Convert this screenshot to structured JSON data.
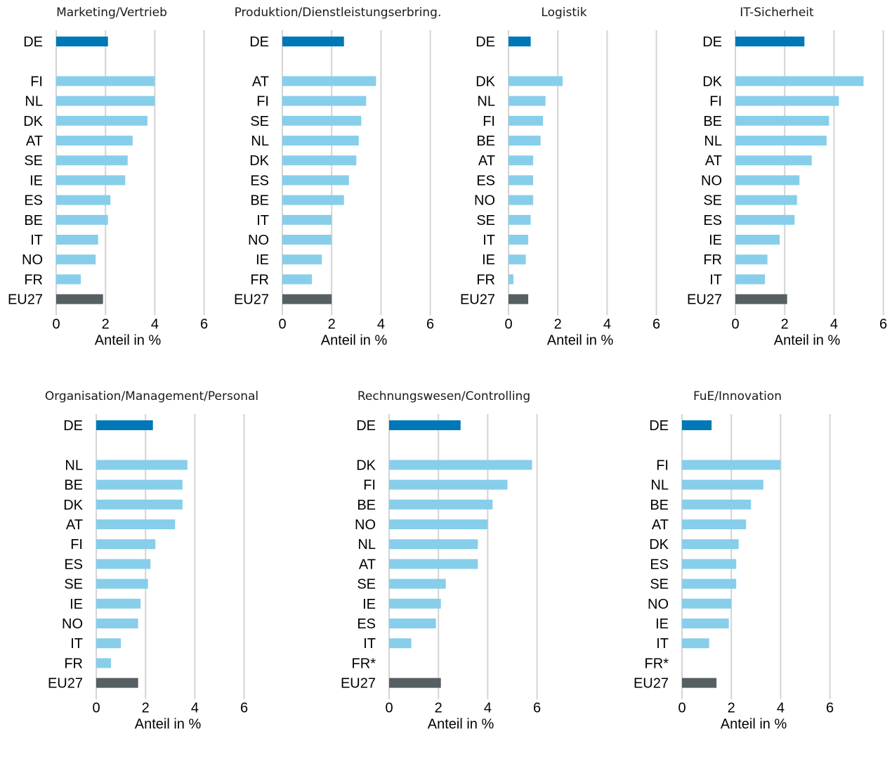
{
  "colors": {
    "de": "#0077b6",
    "country": "#87ceeb",
    "eu27": "#565f62",
    "grid": "#d4d4d4"
  },
  "chart_data": [
    {
      "type": "bar",
      "orientation": "horizontal",
      "title": "Marketing/Vertrieb",
      "xlabel": "Anteil in %",
      "xlim": [
        0,
        6
      ],
      "xticks": [
        "0",
        "2",
        "4",
        "6"
      ],
      "grid": true,
      "categories": [
        "DE",
        "FI",
        "NL",
        "DK",
        "AT",
        "SE",
        "IE",
        "ES",
        "BE",
        "IT",
        "NO",
        "FR",
        "EU27"
      ],
      "values": [
        2.1,
        4.0,
        4.0,
        3.7,
        3.1,
        2.9,
        2.8,
        2.2,
        2.1,
        1.7,
        1.6,
        1.0,
        1.9
      ]
    },
    {
      "type": "bar",
      "orientation": "horizontal",
      "title": "Produktion/Dienstleistungserbring.",
      "xlabel": "Anteil in %",
      "xlim": [
        0,
        6
      ],
      "xticks": [
        "0",
        "2",
        "4",
        "6"
      ],
      "grid": true,
      "categories": [
        "DE",
        "AT",
        "FI",
        "SE",
        "NL",
        "DK",
        "ES",
        "BE",
        "IT",
        "NO",
        "IE",
        "FR",
        "EU27"
      ],
      "values": [
        2.5,
        3.8,
        3.4,
        3.2,
        3.1,
        3.0,
        2.7,
        2.5,
        2.0,
        2.0,
        1.6,
        1.2,
        2.0
      ]
    },
    {
      "type": "bar",
      "orientation": "horizontal",
      "title": "Logistik",
      "xlabel": "Anteil in %",
      "xlim": [
        0,
        6
      ],
      "xticks": [
        "0",
        "2",
        "4",
        "6"
      ],
      "grid": true,
      "categories": [
        "DE",
        "DK",
        "NL",
        "FI",
        "BE",
        "AT",
        "ES",
        "NO",
        "SE",
        "IT",
        "IE",
        "FR",
        "EU27"
      ],
      "values": [
        0.9,
        2.2,
        1.5,
        1.4,
        1.3,
        1.0,
        1.0,
        1.0,
        0.9,
        0.8,
        0.7,
        0.2,
        0.8
      ]
    },
    {
      "type": "bar",
      "orientation": "horizontal",
      "title": "IT-Sicherheit",
      "xlabel": "Anteil in %",
      "xlim": [
        0,
        6
      ],
      "xticks": [
        "0",
        "2",
        "4",
        "6"
      ],
      "grid": true,
      "categories": [
        "DE",
        "DK",
        "FI",
        "BE",
        "NL",
        "AT",
        "NO",
        "SE",
        "ES",
        "IE",
        "FR",
        "IT",
        "EU27"
      ],
      "values": [
        2.8,
        5.2,
        4.2,
        3.8,
        3.7,
        3.1,
        2.6,
        2.5,
        2.4,
        1.8,
        1.3,
        1.2,
        2.1
      ]
    },
    {
      "type": "bar",
      "orientation": "horizontal",
      "title": "Organisation/Management/Personal",
      "xlabel": "Anteil in %",
      "xlim": [
        0,
        6
      ],
      "xticks": [
        "0",
        "2",
        "4",
        "6"
      ],
      "grid": true,
      "categories": [
        "DE",
        "NL",
        "BE",
        "DK",
        "AT",
        "FI",
        "ES",
        "SE",
        "IE",
        "NO",
        "IT",
        "FR",
        "EU27"
      ],
      "values": [
        2.3,
        3.7,
        3.5,
        3.5,
        3.2,
        2.4,
        2.2,
        2.1,
        1.8,
        1.7,
        1.0,
        0.6,
        1.7
      ]
    },
    {
      "type": "bar",
      "orientation": "horizontal",
      "title": "Rechnungswesen/Controlling",
      "xlabel": "Anteil in %",
      "xlim": [
        0,
        6
      ],
      "xticks": [
        "0",
        "2",
        "4",
        "6"
      ],
      "grid": true,
      "categories": [
        "DE",
        "DK",
        "FI",
        "BE",
        "NO",
        "NL",
        "AT",
        "SE",
        "IE",
        "ES",
        "IT",
        "FR*",
        "EU27"
      ],
      "values": [
        2.9,
        5.8,
        4.8,
        4.2,
        4.0,
        3.6,
        3.6,
        2.3,
        2.1,
        1.9,
        0.9,
        null,
        2.1
      ]
    },
    {
      "type": "bar",
      "orientation": "horizontal",
      "title": "FuE/Innovation",
      "xlabel": "Anteil in %",
      "xlim": [
        0,
        6
      ],
      "xticks": [
        "0",
        "2",
        "4",
        "6"
      ],
      "grid": true,
      "categories": [
        "DE",
        "FI",
        "NL",
        "BE",
        "AT",
        "DK",
        "ES",
        "SE",
        "NO",
        "IE",
        "IT",
        "FR*",
        "EU27"
      ],
      "values": [
        1.2,
        4.0,
        3.3,
        2.8,
        2.6,
        2.3,
        2.2,
        2.2,
        2.0,
        1.9,
        1.1,
        null,
        1.4
      ]
    }
  ]
}
